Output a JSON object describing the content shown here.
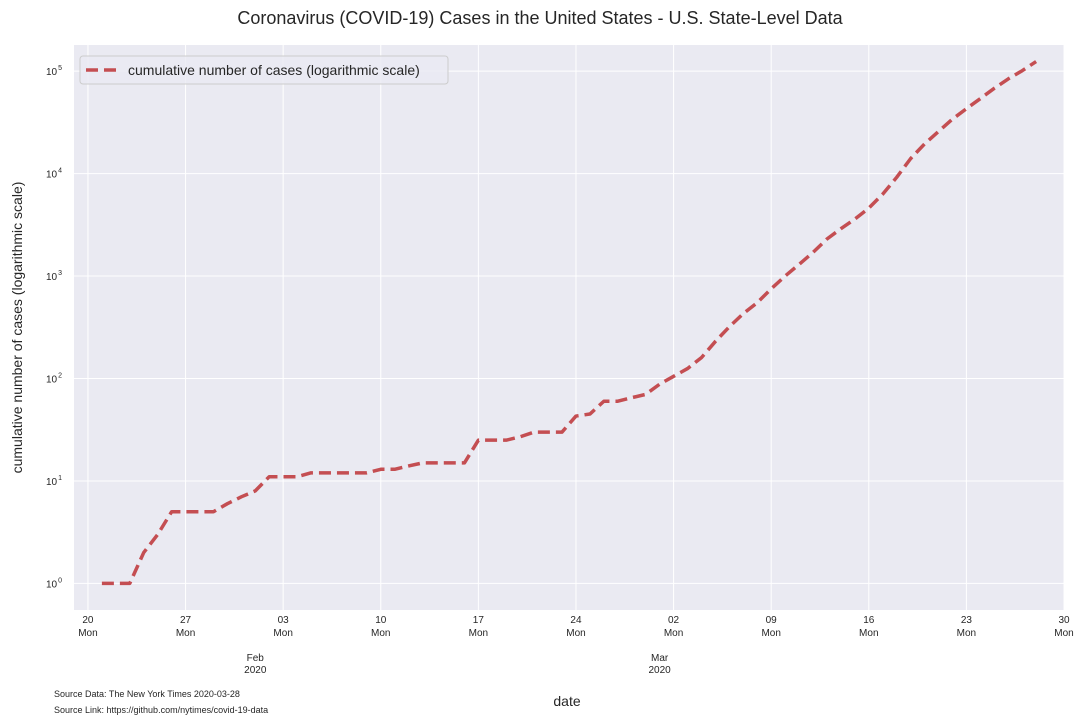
{
  "chart_data": {
    "type": "line",
    "title": "Coronavirus (COVID-19) Cases in the United States -  U.S. State-Level Data",
    "xlabel": "date",
    "ylabel": "cumulative number of cases (logarithmic scale)",
    "yscale": "log",
    "ylim": [
      0.55,
      180000
    ],
    "xlim": [
      "2020-01-19",
      "2020-03-30"
    ],
    "grid": true,
    "legend_position": "top-left",
    "series_color": "#c44e52",
    "background_color": "#eaeaf2",
    "x_ticks": [
      {
        "date": "2020-01-20",
        "day": "20",
        "weekday": "Mon"
      },
      {
        "date": "2020-01-27",
        "day": "27",
        "weekday": "Mon"
      },
      {
        "date": "2020-02-03",
        "day": "03",
        "weekday": "Mon"
      },
      {
        "date": "2020-02-10",
        "day": "10",
        "weekday": "Mon"
      },
      {
        "date": "2020-02-17",
        "day": "17",
        "weekday": "Mon"
      },
      {
        "date": "2020-02-24",
        "day": "24",
        "weekday": "Mon"
      },
      {
        "date": "2020-03-02",
        "day": "02",
        "weekday": "Mon"
      },
      {
        "date": "2020-03-09",
        "day": "09",
        "weekday": "Mon"
      },
      {
        "date": "2020-03-16",
        "day": "16",
        "weekday": "Mon"
      },
      {
        "date": "2020-03-23",
        "day": "23",
        "weekday": "Mon"
      },
      {
        "date": "2020-03-30",
        "day": "30",
        "weekday": "Mon"
      }
    ],
    "month_labels": [
      {
        "date": "2020-02-01",
        "month": "Feb",
        "year": "2020"
      },
      {
        "date": "2020-03-01",
        "month": "Mar",
        "year": "2020"
      }
    ],
    "y_ticks": [
      {
        "value": 1,
        "base": "10",
        "exp": "0"
      },
      {
        "value": 10,
        "base": "10",
        "exp": "1"
      },
      {
        "value": 100,
        "base": "10",
        "exp": "2"
      },
      {
        "value": 1000,
        "base": "10",
        "exp": "3"
      },
      {
        "value": 10000,
        "base": "10",
        "exp": "4"
      },
      {
        "value": 100000,
        "base": "10",
        "exp": "5"
      }
    ],
    "series": [
      {
        "name": "cumulative number of cases (logarithmic scale)",
        "x": [
          "2020-01-21",
          "2020-01-22",
          "2020-01-23",
          "2020-01-24",
          "2020-01-25",
          "2020-01-26",
          "2020-01-27",
          "2020-01-28",
          "2020-01-29",
          "2020-01-30",
          "2020-01-31",
          "2020-02-01",
          "2020-02-02",
          "2020-02-03",
          "2020-02-04",
          "2020-02-05",
          "2020-02-06",
          "2020-02-07",
          "2020-02-08",
          "2020-02-09",
          "2020-02-10",
          "2020-02-11",
          "2020-02-12",
          "2020-02-13",
          "2020-02-14",
          "2020-02-15",
          "2020-02-16",
          "2020-02-17",
          "2020-02-18",
          "2020-02-19",
          "2020-02-20",
          "2020-02-21",
          "2020-02-22",
          "2020-02-23",
          "2020-02-24",
          "2020-02-25",
          "2020-02-26",
          "2020-02-27",
          "2020-02-28",
          "2020-02-29",
          "2020-03-01",
          "2020-03-02",
          "2020-03-03",
          "2020-03-04",
          "2020-03-05",
          "2020-03-06",
          "2020-03-07",
          "2020-03-08",
          "2020-03-09",
          "2020-03-10",
          "2020-03-11",
          "2020-03-12",
          "2020-03-13",
          "2020-03-14",
          "2020-03-15",
          "2020-03-16",
          "2020-03-17",
          "2020-03-18",
          "2020-03-19",
          "2020-03-20",
          "2020-03-21",
          "2020-03-22",
          "2020-03-23",
          "2020-03-24",
          "2020-03-25",
          "2020-03-26",
          "2020-03-27",
          "2020-03-28"
        ],
        "y": [
          1,
          1,
          1,
          2,
          3,
          5,
          5,
          5,
          5,
          6,
          7,
          8,
          11,
          11,
          11,
          12,
          12,
          12,
          12,
          12,
          13,
          13,
          14,
          15,
          15,
          15,
          15,
          25,
          25,
          25,
          27,
          30,
          30,
          30,
          43,
          45,
          60,
          60,
          65,
          70,
          88,
          105,
          125,
          160,
          230,
          320,
          430,
          550,
          750,
          1000,
          1300,
          1700,
          2300,
          2900,
          3600,
          4600,
          6300,
          9200,
          14000,
          19500,
          25800,
          34000,
          43000,
          54000,
          68000,
          84000,
          101000,
          124000
        ]
      }
    ]
  },
  "source": {
    "data": "Source Data: The New York Times 2020-03-28",
    "link": "Source Link: https://github.com/nytimes/covid-19-data"
  }
}
